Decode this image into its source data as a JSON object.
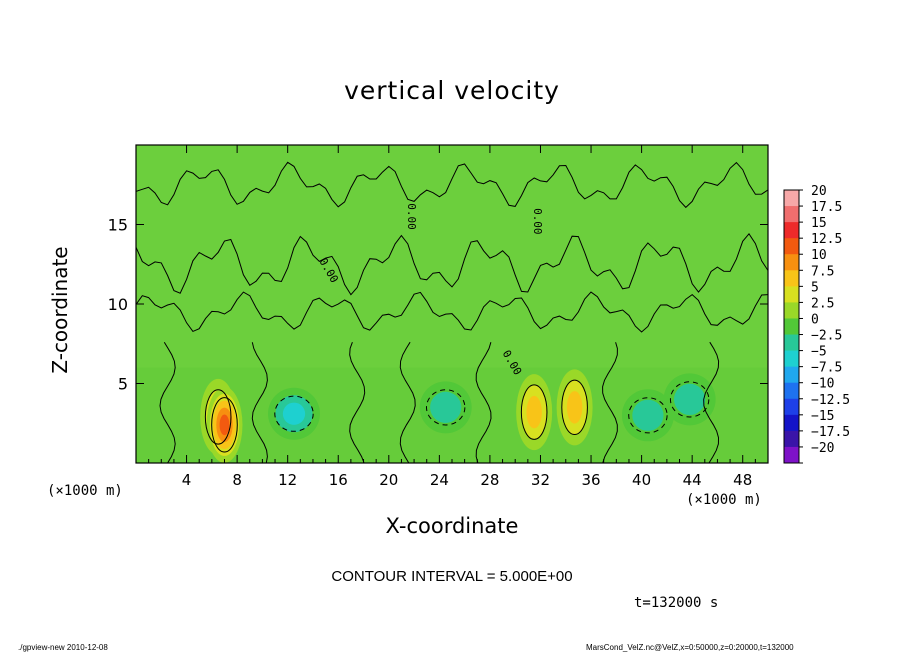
{
  "chart_data": {
    "type": "heatmap",
    "title": "vertical velocity",
    "xlabel": "X-coordinate",
    "ylabel": "Z-coordinate",
    "x_unit": "(×1000 m)",
    "y_unit": "(×1000 m)",
    "x_ticks": [
      "4",
      "8",
      "12",
      "16",
      "20",
      "24",
      "28",
      "32",
      "36",
      "40",
      "44",
      "48"
    ],
    "y_ticks": [
      "5",
      "10",
      "15"
    ],
    "xlim": [
      0,
      50
    ],
    "ylim": [
      0,
      20
    ],
    "colorbar": {
      "labels": [
        "20",
        "17.5",
        "15",
        "12.5",
        "10",
        "7.5",
        "5",
        "2.5",
        "0",
        "-2.5",
        "-5",
        "-7.5",
        "-10",
        "-12.5",
        "-15",
        "-17.5",
        "-20"
      ],
      "colors": [
        "#f7a8a8",
        "#f06e6e",
        "#ee2a2a",
        "#f25a10",
        "#f79010",
        "#f8c418",
        "#d8e020",
        "#9ad828",
        "#52c838",
        "#28c898",
        "#1ed0d0",
        "#20a8ee",
        "#1e72f0",
        "#1e40e8",
        "#1414c8",
        "#3a14a8",
        "#7e12c8"
      ]
    },
    "features": [
      {
        "kind": "updraft",
        "x": 6.5,
        "z": 2.9,
        "w": 8.5
      },
      {
        "kind": "updraft-core",
        "x": 7.0,
        "z": 2.4,
        "w": 12.0
      },
      {
        "kind": "downdraft",
        "x": 12.5,
        "z": 3.1,
        "w": -8.0
      },
      {
        "kind": "downdraft",
        "x": 24.5,
        "z": 3.5,
        "w": -6.0
      },
      {
        "kind": "updraft",
        "x": 31.5,
        "z": 3.2,
        "w": 8.0
      },
      {
        "kind": "updraft",
        "x": 34.7,
        "z": 3.5,
        "w": 7.0
      },
      {
        "kind": "downdraft",
        "x": 40.5,
        "z": 3.0,
        "w": -5.5
      },
      {
        "kind": "downdraft",
        "x": 43.8,
        "z": 4.0,
        "w": -4.5
      }
    ],
    "contour_labels": [
      "0.00",
      "0.00",
      "0.00",
      "0.00"
    ],
    "grid": false,
    "legend": "right"
  },
  "contour_interval": "CONTOUR INTERVAL = 5.000E+00",
  "time_label": "t=132000 s",
  "footer_left": "./gpview-new   2010-12-08",
  "footer_right": "MarsCond_VelZ.nc@VelZ,x=0:50000,z=0:20000,t=132000"
}
